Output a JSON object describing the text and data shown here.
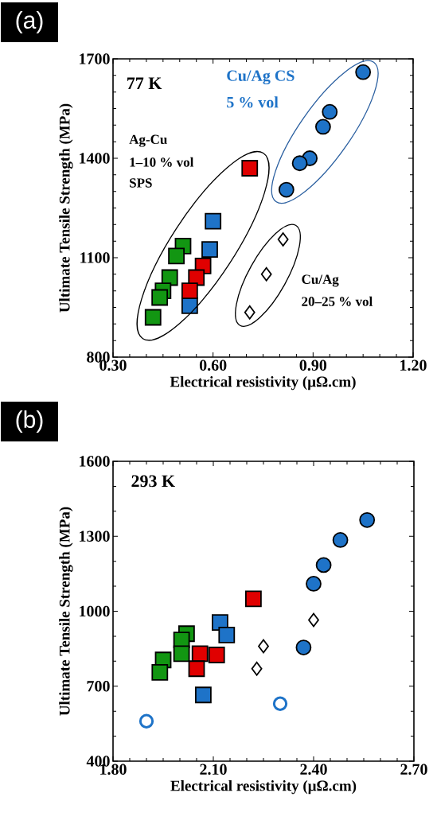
{
  "chart_data": [
    {
      "type": "scatter",
      "title": "(a)",
      "xlabel": "Electrical resistivity (μΩ.cm)",
      "ylabel": "Ultimate Tensile Strength (MPa)",
      "xlim": [
        0.3,
        1.2
      ],
      "ylim": [
        800,
        1700
      ],
      "xticks": [
        {
          "value": 0.3,
          "label": "0.30"
        },
        {
          "value": 0.6,
          "label": "0.60"
        },
        {
          "value": 0.9,
          "label": "0.90"
        },
        {
          "value": 1.2,
          "label": "1.20"
        }
      ],
      "yticks": [
        800,
        1100,
        1400,
        1700
      ],
      "annotations": [
        "77 K",
        "Cu/Ag CS",
        "5 % vol",
        "Ag-Cu",
        "1–10 % vol",
        "SPS",
        "Cu/Ag",
        "20–25 % vol"
      ],
      "series": [
        {
          "color": "#1e73c8",
          "marker": "circle",
          "x": [
            1.05,
            0.95,
            0.93,
            0.89,
            0.86,
            0.82
          ],
          "values": [
            1660,
            1540,
            1495,
            1400,
            1385,
            1305
          ]
        },
        {
          "color": "#129612",
          "marker": "square",
          "x": [
            0.51,
            0.49,
            0.47,
            0.45,
            0.44,
            0.42
          ],
          "values": [
            1135,
            1105,
            1040,
            1000,
            980,
            920
          ]
        },
        {
          "color": "#1e73c8",
          "marker": "square",
          "x": [
            0.6,
            0.59,
            0.53
          ],
          "values": [
            1210,
            1125,
            955
          ]
        },
        {
          "color": "#e00000",
          "marker": "square",
          "x": [
            0.71,
            0.57,
            0.55,
            0.53
          ],
          "values": [
            1370,
            1075,
            1040,
            1000
          ]
        },
        {
          "color": "#ffffff",
          "marker": "diamond",
          "x": [
            0.81,
            0.76,
            0.71
          ],
          "values": [
            1155,
            1050,
            935
          ]
        }
      ]
    },
    {
      "type": "scatter",
      "title": "(b)",
      "xlabel": "Electrical resistivity (μΩ.cm)",
      "ylabel": "Ultimate Tensile Strength (MPa)",
      "xlim": [
        1.8,
        2.7
      ],
      "ylim": [
        400,
        1600
      ],
      "xticks": [
        {
          "value": 1.8,
          "label": "1.80"
        },
        {
          "value": 2.1,
          "label": "2.10"
        },
        {
          "value": 2.4,
          "label": "2.40"
        },
        {
          "value": 2.7,
          "label": "2.70"
        }
      ],
      "yticks": [
        400,
        700,
        1000,
        1300,
        1600
      ],
      "annotations": [
        "293 K"
      ],
      "series": [
        {
          "color": "#1e73c8",
          "marker": "circle",
          "x": [
            2.56,
            2.48,
            2.43,
            2.4,
            2.37
          ],
          "values": [
            1365,
            1285,
            1185,
            1110,
            855
          ]
        },
        {
          "color": "#1e73c8",
          "marker": "circle",
          "x": [
            1.9,
            2.3
          ],
          "values": [
            560,
            630
          ]
        },
        {
          "color": "#129612",
          "marker": "square",
          "x": [
            2.02,
            2.005,
            2.005,
            1.96,
            1.95,
            1.94
          ],
          "values": [
            910,
            885,
            830,
            null,
            805,
            755
          ]
        },
        {
          "color": "#1e73c8",
          "marker": "square",
          "x": [
            2.12,
            2.14,
            2.07
          ],
          "values": [
            955,
            905,
            665
          ]
        },
        {
          "color": "#e00000",
          "marker": "square",
          "x": [
            2.22,
            2.11,
            2.06,
            2.05
          ],
          "values": [
            1050,
            825,
            830,
            770
          ]
        },
        {
          "color": "#ffffff",
          "marker": "diamond",
          "x": [
            2.4,
            2.25,
            2.23
          ],
          "values": [
            965,
            860,
            770
          ]
        }
      ]
    }
  ]
}
